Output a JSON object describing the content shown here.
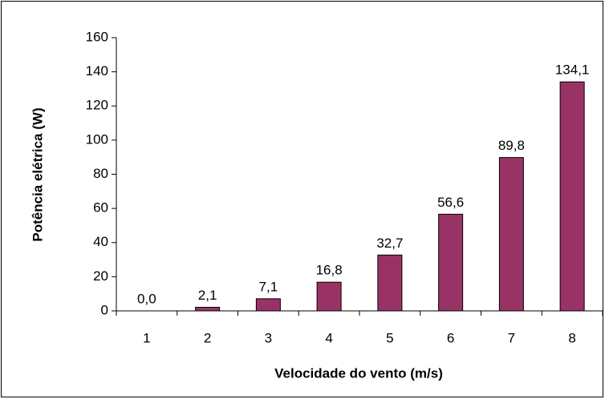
{
  "chart_data": {
    "type": "bar",
    "xlabel": "Velocidade do vento (m/s)",
    "ylabel": "Potência elétrica (W)",
    "categories": [
      "1",
      "2",
      "3",
      "4",
      "5",
      "6",
      "7",
      "8"
    ],
    "values": [
      0,
      2.1,
      7.1,
      16.8,
      32.7,
      56.6,
      89.8,
      134.1
    ],
    "value_labels": [
      "0,0",
      "2,1",
      "7,1",
      "16,8",
      "32,7",
      "56,6",
      "89,8",
      "134,1"
    ],
    "color": "#993366",
    "ylim": [
      0,
      160
    ],
    "yticks": [
      0,
      20,
      40,
      60,
      80,
      100,
      120,
      140,
      160
    ],
    "grid": false
  }
}
